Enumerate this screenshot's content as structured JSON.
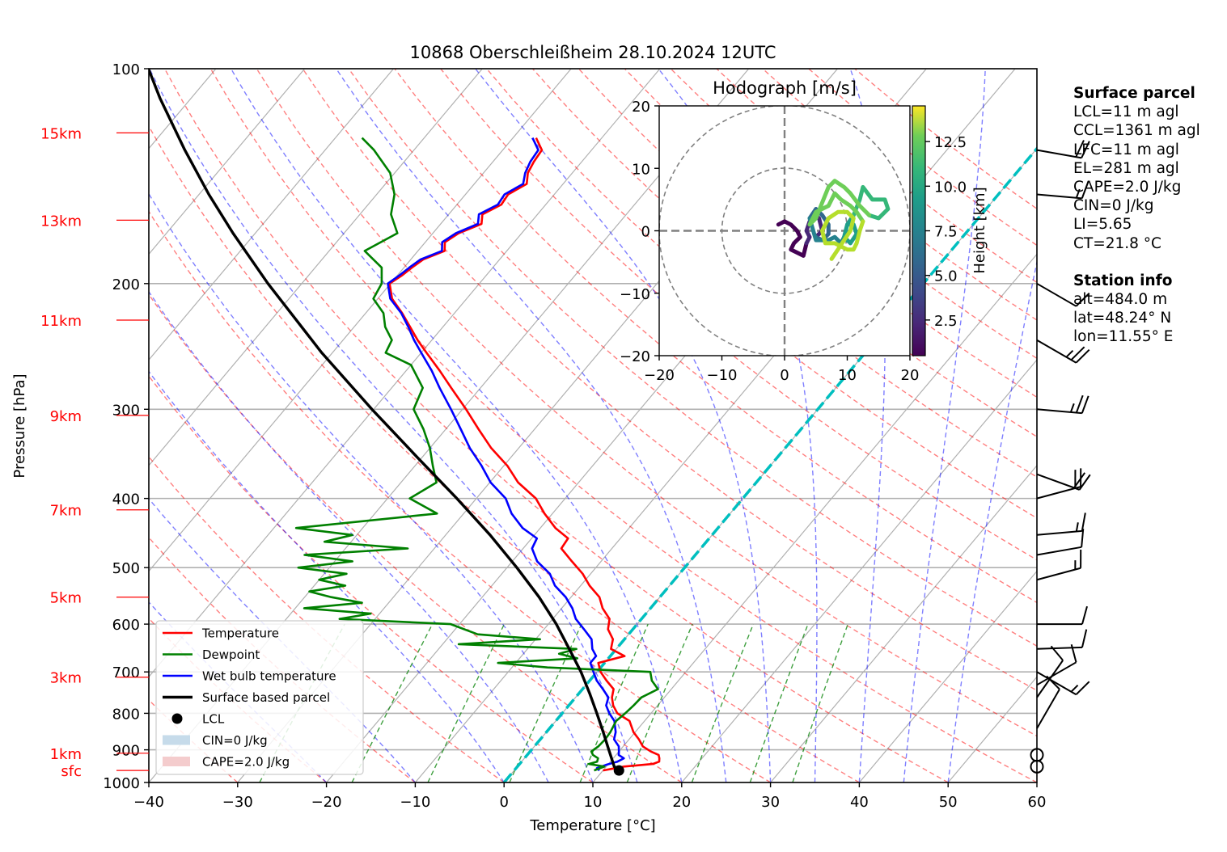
{
  "chart_data": {
    "type": "skewt",
    "title": "10868 Oberschleißheim 28.10.2024 12UTC",
    "xlabel": "Temperature [°C]",
    "ylabel": "Pressure [hPa]",
    "xlim": [
      -40,
      60
    ],
    "ylim": [
      1000,
      100
    ],
    "x_ticks": [
      -40,
      -30,
      -20,
      -10,
      0,
      10,
      20,
      30,
      40,
      50,
      60
    ],
    "y_ticks": [
      100,
      200,
      300,
      400,
      500,
      600,
      700,
      800,
      900,
      1000
    ],
    "grid": true,
    "height_labels": [
      {
        "label": "15km",
        "p": 123
      },
      {
        "label": "13km",
        "p": 163
      },
      {
        "label": "11km",
        "p": 225
      },
      {
        "label": "9km",
        "p": 306
      },
      {
        "label": "7km",
        "p": 415
      },
      {
        "label": "5km",
        "p": 550
      },
      {
        "label": "3km",
        "p": 712
      },
      {
        "label": "1km",
        "p": 910
      },
      {
        "label": "sfc",
        "p": 962
      }
    ],
    "zero_isotherm": 0,
    "series": [
      {
        "name": "Temperature",
        "color": "#ff0000",
        "p": [
          962,
          950,
          942,
          935,
          925,
          915,
          905,
          890,
          870,
          850,
          820,
          800,
          780,
          760,
          740,
          720,
          700,
          680,
          665,
          650,
          630,
          610,
          590,
          570,
          550,
          530,
          510,
          490,
          470,
          455,
          440,
          420,
          400,
          380,
          360,
          340,
          320,
          300,
          280,
          265,
          250,
          240,
          230,
          220,
          210,
          200,
          195,
          190,
          185,
          180,
          175,
          170,
          165,
          160,
          155,
          150,
          145,
          140,
          135,
          130,
          125
        ],
        "T": [
          10.0,
          12.0,
          15.0,
          15.5,
          15.2,
          14.8,
          13.6,
          12.2,
          11.1,
          9.8,
          8.3,
          6.2,
          5.0,
          4.1,
          3.5,
          1.9,
          0.4,
          -0.7,
          1.6,
          -0.6,
          -1.3,
          -2.8,
          -3.6,
          -5.4,
          -6.8,
          -9.0,
          -10.9,
          -13.3,
          -15.7,
          -15.9,
          -18.3,
          -20.9,
          -23.3,
          -26.8,
          -29.6,
          -33.1,
          -36.3,
          -39.6,
          -43.3,
          -46.2,
          -49.4,
          -51.6,
          -53.7,
          -55.9,
          -58.4,
          -60.1,
          -59.5,
          -59.1,
          -58.6,
          -57.0,
          -57.8,
          -57.1,
          -55.4,
          -56.2,
          -55.0,
          -55.2,
          -54.1,
          -55.0,
          -55.4,
          -55.6,
          -57.4
        ]
      },
      {
        "name": "Dewpoint",
        "color": "#008000",
        "p": [
          962,
          950,
          942,
          935,
          925,
          915,
          905,
          890,
          870,
          850,
          820,
          800,
          780,
          760,
          740,
          720,
          700,
          690,
          680,
          670,
          660,
          650,
          640,
          630,
          620,
          600,
          590,
          580,
          570,
          560,
          550,
          540,
          530,
          520,
          510,
          500,
          490,
          480,
          470,
          460,
          450,
          440,
          420,
          400,
          380,
          360,
          340,
          320,
          300,
          280,
          260,
          250,
          240,
          230,
          220,
          210,
          200,
          190,
          180,
          170,
          160,
          150,
          140,
          130,
          125
        ],
        "T": [
          9.0,
          9.8,
          7.8,
          8.5,
          8.3,
          7.4,
          6.9,
          7.2,
          7.3,
          7.2,
          6.8,
          7.1,
          7.3,
          7.4,
          8.5,
          7.0,
          6.0,
          -6.0,
          -12.0,
          -3.5,
          -6.0,
          -4.5,
          -18.2,
          -9.5,
          -17.0,
          -21.0,
          -34.0,
          -31.0,
          -39.0,
          -33.0,
          -37.0,
          -40.0,
          -36.5,
          -40.0,
          -37.5,
          -43.5,
          -38.0,
          -44.0,
          -33.0,
          -43.0,
          -40.5,
          -47.5,
          -33.0,
          -37.5,
          -36.0,
          -38.0,
          -40.0,
          -42.5,
          -45.5,
          -46.5,
          -50.0,
          -54.0,
          -54.5,
          -56.5,
          -58.0,
          -60.5,
          -61.0,
          -62.5,
          -66.0,
          -64.0,
          -66.5,
          -68.0,
          -70.5,
          -74.5,
          -77.0
        ]
      },
      {
        "name": "Wet bulb temperature",
        "color": "#0000ff",
        "p": [
          962,
          955,
          945,
          935,
          925,
          915,
          905,
          890,
          870,
          850,
          820,
          800,
          780,
          760,
          740,
          720,
          700,
          680,
          665,
          650,
          630,
          610,
          590,
          570,
          550,
          530,
          510,
          490,
          470,
          455,
          440,
          420,
          400,
          380,
          360,
          340,
          320,
          300,
          280,
          265,
          250,
          240,
          230,
          220,
          210,
          200,
          195,
          190,
          185,
          180,
          175,
          170,
          165,
          160,
          155,
          150,
          145,
          140,
          135,
          130,
          125
        ],
        "T": [
          9.6,
          9.1,
          9.8,
          10.8,
          11.2,
          10.3,
          10.0,
          9.5,
          8.3,
          7.8,
          6.6,
          5.3,
          4.2,
          3.7,
          2.3,
          0.8,
          -0.4,
          -1.6,
          -1.6,
          -2.7,
          -3.7,
          -5.5,
          -7.4,
          -8.8,
          -10.6,
          -12.9,
          -14.6,
          -17.2,
          -19.0,
          -19.4,
          -22.0,
          -24.6,
          -26.7,
          -29.9,
          -32.5,
          -35.5,
          -38.3,
          -41.3,
          -44.6,
          -47.1,
          -50.0,
          -52.0,
          -53.9,
          -56.0,
          -58.6,
          -60.3,
          -59.8,
          -59.4,
          -58.9,
          -57.3,
          -58.1,
          -57.4,
          -55.8,
          -56.6,
          -55.4,
          -55.6,
          -54.5,
          -55.3,
          -55.8,
          -56.0,
          -57.8
        ]
      },
      {
        "name": "Surface based parcel",
        "color": "#000000",
        "p": [
          962,
          950,
          900,
          850,
          800,
          750,
          700,
          650,
          600,
          550,
          500,
          450,
          400,
          350,
          300,
          250,
          200,
          170,
          150,
          130,
          110,
          100
        ],
        "T": [
          11.8,
          10.9,
          8.7,
          6.4,
          3.9,
          1.2,
          -1.8,
          -5.3,
          -9.1,
          -13.6,
          -18.9,
          -25.0,
          -32.2,
          -40.6,
          -50.2,
          -61.2,
          -73.8,
          -82.5,
          -88.9,
          -95.8,
          -103.5,
          -107.6
        ]
      }
    ],
    "lcl": {
      "p": 962,
      "T": 11.8
    },
    "cape_shading": {
      "label": "CAPE=2.0 J/kg"
    },
    "cin_shading": {
      "label": "CIN=0 J/kg"
    },
    "wind_barbs": [
      {
        "p": 130,
        "speed_kt": 20,
        "dir_deg": 280
      },
      {
        "p": 150,
        "speed_kt": 15,
        "dir_deg": 275
      },
      {
        "p": 200,
        "speed_kt": 10,
        "dir_deg": 300
      },
      {
        "p": 240,
        "speed_kt": 25,
        "dir_deg": 300
      },
      {
        "p": 300,
        "speed_kt": 25,
        "dir_deg": 275
      },
      {
        "p": 370,
        "speed_kt": 20,
        "dir_deg": 290
      },
      {
        "p": 400,
        "speed_kt": 20,
        "dir_deg": 255
      },
      {
        "p": 450,
        "speed_kt": 15,
        "dir_deg": 265
      },
      {
        "p": 480,
        "speed_kt": 10,
        "dir_deg": 260
      },
      {
        "p": 520,
        "speed_kt": 15,
        "dir_deg": 255
      },
      {
        "p": 600,
        "speed_kt": 10,
        "dir_deg": 270
      },
      {
        "p": 650,
        "speed_kt": 10,
        "dir_deg": 268
      },
      {
        "p": 700,
        "speed_kt": 15,
        "dir_deg": 300
      },
      {
        "p": 730,
        "speed_kt": 10,
        "dir_deg": 240
      },
      {
        "p": 760,
        "speed_kt": 10,
        "dir_deg": 215
      },
      {
        "p": 840,
        "speed_kt": 10,
        "dir_deg": 210
      },
      {
        "p": 915,
        "speed_kt": 0,
        "dir_deg": 0
      },
      {
        "p": 950,
        "speed_kt": 0,
        "dir_deg": 0
      }
    ],
    "legend": {
      "placement": "lower-left",
      "entries": [
        {
          "label": "Temperature",
          "kind": "line",
          "color": "#ff0000"
        },
        {
          "label": "Dewpoint",
          "kind": "line",
          "color": "#008000"
        },
        {
          "label": "Wet bulb temperature",
          "kind": "line",
          "color": "#0000ff"
        },
        {
          "label": "Surface based parcel",
          "kind": "line",
          "color": "#000000"
        },
        {
          "label": "LCL",
          "kind": "dot",
          "color": "#000000"
        },
        {
          "label": "CIN=0 J/kg",
          "kind": "patch",
          "color": "#c6dbea"
        },
        {
          "label": "CAPE=2.0 J/kg",
          "kind": "patch",
          "color": "#f4cccd"
        }
      ]
    },
    "hodograph": {
      "type": "line",
      "title": "Hodograph [m/s]",
      "xlim": [
        -20,
        20
      ],
      "ylim": [
        -20,
        20
      ],
      "x_ticks": [
        -20,
        -10,
        0,
        10,
        20
      ],
      "y_ticks": [
        -20,
        -10,
        0,
        10,
        20
      ],
      "rings": [
        10,
        20
      ],
      "colorbar_label": "Height [km]",
      "colorbar_ticks": [
        2.5,
        5.0,
        7.5,
        10.0,
        12.5
      ],
      "colorbar_range": [
        0.5,
        14.5
      ],
      "segments": [
        {
          "h": 0.5,
          "u": [
            -1,
            0,
            1,
            2,
            2.5,
            1.5,
            1,
            2,
            3,
            3.5
          ],
          "v": [
            1,
            1.5,
            1,
            0,
            -1,
            -2,
            -3,
            -3.5,
            -4,
            -2
          ]
        },
        {
          "h": 2.5,
          "u": [
            3.5,
            4,
            3.5,
            4,
            5,
            5.5,
            6,
            5
          ],
          "v": [
            -2,
            -1,
            0,
            1.5,
            2.5,
            2,
            0,
            -1
          ]
        },
        {
          "h": 4.5,
          "u": [
            5,
            6,
            7,
            7,
            6,
            5,
            4
          ],
          "v": [
            -1,
            -1.5,
            -0.5,
            1,
            2.5,
            3.5,
            2
          ]
        },
        {
          "h": 6.5,
          "u": [
            4,
            5,
            7,
            8,
            9,
            9.5
          ],
          "v": [
            2,
            -1.5,
            -1.5,
            -1,
            -2,
            -1
          ]
        },
        {
          "h": 8.0,
          "u": [
            9.5,
            10,
            11,
            11.5,
            10.5,
            9.5,
            10,
            11
          ],
          "v": [
            -1,
            1,
            1,
            -0.5,
            -2,
            -1,
            1,
            2.5
          ]
        },
        {
          "h": 9.5,
          "u": [
            11,
            12,
            12.5,
            14,
            16,
            16.5,
            15,
            13.5
          ],
          "v": [
            2.5,
            5,
            7,
            5,
            5,
            3.5,
            2,
            2.5
          ]
        },
        {
          "h": 11.0,
          "u": [
            13.5,
            12,
            10.5,
            9.5,
            8,
            7,
            6,
            5
          ],
          "v": [
            2.5,
            4,
            6,
            7,
            8,
            7,
            4.5,
            2
          ]
        },
        {
          "h": 12.0,
          "u": [
            5,
            4,
            5,
            7,
            8,
            9,
            10.5,
            11.5,
            12.5
          ],
          "v": [
            2,
            1,
            3,
            4,
            6,
            5,
            4,
            3,
            1.5
          ]
        },
        {
          "h": 13.5,
          "u": [
            12.5,
            12,
            11.5,
            11,
            10,
            8,
            6.5,
            6,
            7,
            8.5,
            10,
            11,
            10.5,
            9.5,
            8.5,
            7.5
          ],
          "v": [
            1.5,
            0,
            -2,
            -3,
            -3,
            -2,
            -2,
            0,
            2,
            3,
            3,
            2,
            0,
            -1.5,
            -3,
            -4.5
          ]
        }
      ]
    },
    "annotations": {
      "surface_parcel_title": "Surface parcel",
      "surface_parcel": [
        "LCL=11 m agl",
        "CCL=1361 m agl",
        "LFC=11 m agl",
        "EL=281 m agl",
        "CAPE=2.0 J/kg",
        "CIN=0 J/kg",
        "LI=5.65",
        "CT=21.8 °C"
      ],
      "station_info_title": "Station info",
      "station_info": [
        "alt=484.0 m",
        "lat=48.24° N",
        "lon=11.55° E"
      ]
    }
  }
}
